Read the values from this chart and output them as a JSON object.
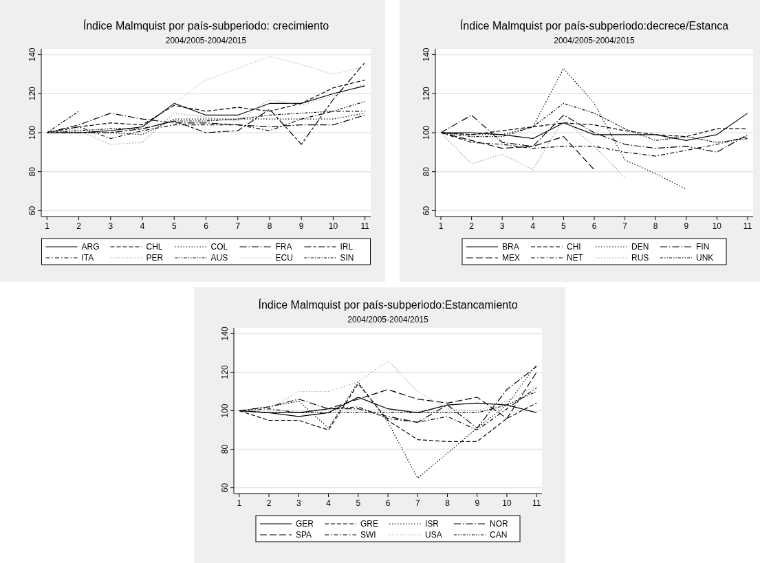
{
  "chart_data": [
    {
      "type": "line",
      "title": "Índice Malmquist por país-subperiodo: crecimiento",
      "subtitle": "2004/2005-2004/2015",
      "x": [
        1,
        2,
        3,
        4,
        5,
        6,
        7,
        8,
        9,
        10,
        11
      ],
      "xlim": [
        0.82,
        11.18
      ],
      "xticks": [
        1,
        2,
        3,
        4,
        5,
        6,
        7,
        8,
        9,
        10,
        11
      ],
      "ylim": [
        57,
        143
      ],
      "yticks": [
        60,
        80,
        100,
        120,
        140
      ],
      "grid": "y",
      "legend": "bottom",
      "series": [
        {
          "name": "ARG",
          "color": "#000000",
          "line_style": "solid",
          "values": [
            100,
            100,
            101,
            103,
            115,
            109,
            109,
            115,
            115,
            120,
            124
          ]
        },
        {
          "name": "CHL",
          "color": "#000000",
          "line_style": "dashed",
          "values": [
            100,
            103,
            105,
            104,
            114,
            111,
            113,
            111,
            115,
            123,
            127
          ]
        },
        {
          "name": "COL",
          "color": "#000000",
          "line_style": "dotted",
          "values": [
            100,
            100,
            100,
            99,
            107,
            107,
            107,
            107,
            107,
            107,
            110
          ]
        },
        {
          "name": "FRA",
          "color": "#000000",
          "line_style": "longdash_dot",
          "values": [
            100,
            104,
            110,
            107,
            105,
            105,
            104,
            103,
            104,
            104,
            109
          ]
        },
        {
          "name": "IRL",
          "color": "#000000",
          "line_style": "longdash_shortdash",
          "values": [
            100,
            100,
            100,
            102,
            106,
            100,
            101,
            112,
            94,
            117,
            136
          ]
        },
        {
          "name": "ITA",
          "color": "#000000",
          "line_style": "dash_dot",
          "values": [
            100,
            103,
            97,
            101,
            104,
            104,
            104,
            101,
            107,
            111,
            111
          ]
        },
        {
          "name": "PER",
          "color": "#999999",
          "line_style": "dotted",
          "values": [
            100,
            101,
            94,
            95,
            110,
            108,
            106,
            117,
            114,
            119,
            125
          ]
        },
        {
          "name": "AUS",
          "color": "#000000",
          "line_style": "dash_dot_dot",
          "values": [
            100,
            101,
            102,
            102,
            106,
            106,
            107,
            109,
            110,
            111,
            116
          ]
        },
        {
          "name": "ECU",
          "color": "#bbbbbb",
          "line_style": "dotted",
          "values": [
            100,
            102,
            101,
            102,
            115,
            127,
            133,
            139,
            135,
            130,
            134
          ]
        },
        {
          "name": "SIN",
          "color": "#000000",
          "line_style": "shortdash_dot",
          "values": [
            100,
            111,
            null,
            null,
            null,
            null,
            null,
            null,
            null,
            null,
            null
          ]
        }
      ]
    },
    {
      "type": "line",
      "title": "Índice Malmquist por país-subperiodo:decrece/Estanca",
      "subtitle": "2004/2005-2004/2015",
      "x": [
        1,
        2,
        3,
        4,
        5,
        6,
        7,
        8,
        9,
        10,
        11
      ],
      "xlim": [
        0.82,
        11.18
      ],
      "xticks": [
        1,
        2,
        3,
        4,
        5,
        6,
        7,
        8,
        9,
        10,
        11
      ],
      "ylim": [
        57,
        143
      ],
      "yticks": [
        60,
        80,
        100,
        120,
        140
      ],
      "grid": "y",
      "legend": "bottom",
      "series": [
        {
          "name": "BRA",
          "color": "#000000",
          "line_style": "solid",
          "values": [
            100,
            100,
            99,
            97,
            105,
            99,
            99,
            99,
            96,
            99,
            110
          ]
        },
        {
          "name": "CHI",
          "color": "#000000",
          "line_style": "dashed",
          "values": [
            100,
            99,
            101,
            103,
            105,
            104,
            101,
            99,
            98,
            102,
            102
          ]
        },
        {
          "name": "DEN",
          "color": "#000000",
          "line_style": "dotted",
          "values": [
            100,
            99,
            99,
            103,
            133,
            115,
            86,
            79,
            71,
            null,
            null
          ]
        },
        {
          "name": "FIN",
          "color": "#000000",
          "line_style": "longdash_dot",
          "values": [
            100,
            109,
            95,
            93,
            109,
            100,
            94,
            92,
            93,
            90,
            99
          ]
        },
        {
          "name": "MEX",
          "color": "#000000",
          "line_style": "longdash",
          "values": [
            100,
            96,
            92,
            93,
            98,
            81,
            null,
            null,
            null,
            null,
            null
          ]
        },
        {
          "name": "NET",
          "color": "#000000",
          "line_style": "dash_dot",
          "values": [
            100,
            95,
            94,
            92,
            93,
            93,
            90,
            88,
            91,
            94,
            98
          ]
        },
        {
          "name": "RUS",
          "color": "#999999",
          "line_style": "dotted",
          "values": [
            100,
            84,
            89,
            81,
            107,
            93,
            77,
            null,
            null,
            null,
            null
          ]
        },
        {
          "name": "UNK",
          "color": "#000000",
          "line_style": "dash_dot_dot",
          "values": [
            100,
            98,
            98,
            103,
            115,
            110,
            102,
            96,
            98,
            95,
            97
          ]
        }
      ]
    },
    {
      "type": "line",
      "title": "Índice Malmquist por país-subperiodo:Estancamiento",
      "subtitle": "2004/2005-2004/2015",
      "x": [
        1,
        2,
        3,
        4,
        5,
        6,
        7,
        8,
        9,
        10,
        11
      ],
      "xlim": [
        0.82,
        11.18
      ],
      "xticks": [
        1,
        2,
        3,
        4,
        5,
        6,
        7,
        8,
        9,
        10,
        11
      ],
      "ylim": [
        57,
        143
      ],
      "yticks": [
        60,
        80,
        100,
        120,
        140
      ],
      "grid": "y",
      "legend": "bottom",
      "series": [
        {
          "name": "GER",
          "color": "#000000",
          "line_style": "solid",
          "values": [
            100,
            99,
            97,
            99,
            107,
            101,
            99,
            103,
            104,
            103,
            99
          ]
        },
        {
          "name": "GRE",
          "color": "#000000",
          "line_style": "dashed",
          "values": [
            100,
            95,
            95,
            90,
            114,
            95,
            85,
            84,
            84,
            96,
            104
          ]
        },
        {
          "name": "ISR",
          "color": "#000000",
          "line_style": "dotted",
          "values": [
            100,
            102,
            105,
            91,
            115,
            94,
            65,
            78,
            91,
            103,
            124
          ]
        },
        {
          "name": "NOR",
          "color": "#000000",
          "line_style": "longdash_dot",
          "values": [
            100,
            102,
            106,
            101,
            101,
            97,
            94,
            103,
            91,
            111,
            123
          ]
        },
        {
          "name": "SPA",
          "color": "#000000",
          "line_style": "longdash",
          "values": [
            100,
            99,
            99,
            101,
            106,
            111,
            106,
            104,
            107,
            96,
            120
          ]
        },
        {
          "name": "SWI",
          "color": "#000000",
          "line_style": "dash_dot",
          "values": [
            100,
            101,
            99,
            101,
            102,
            96,
            94,
            97,
            90,
            101,
            112
          ]
        },
        {
          "name": "USA",
          "color": "#aaaaaa",
          "line_style": "dotted",
          "values": [
            100,
            101,
            110,
            110,
            115,
            126,
            110,
            101,
            100,
            105,
            113
          ]
        },
        {
          "name": "CAN",
          "color": "#000000",
          "line_style": "dash_dot_dot",
          "values": [
            100,
            99,
            99,
            99,
            99,
            99,
            99,
            99,
            99,
            103,
            110
          ]
        }
      ]
    }
  ]
}
